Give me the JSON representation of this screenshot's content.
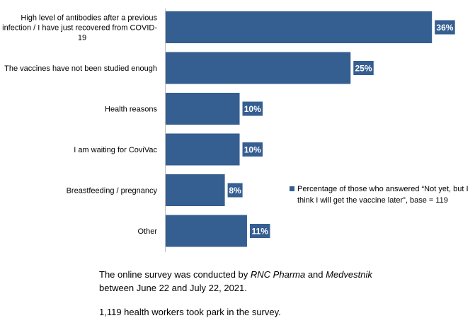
{
  "chart_data": {
    "type": "bar",
    "orientation": "horizontal",
    "categories": [
      [
        "High level of antibodies after a previous",
        "infection / I have just recovered from COVID-",
        "19"
      ],
      [
        "The vaccines have not been studied enough"
      ],
      [
        "Health reasons"
      ],
      [
        "I am waiting for CoviVac"
      ],
      [
        "Breastfeeding / pregnancy"
      ],
      [
        "Other"
      ]
    ],
    "series": [
      {
        "name": "Percentage of those who answered “Not yet, but I think I will get the vaccine later”, base = 119",
        "values": [
          36,
          25,
          10,
          10,
          8,
          11
        ],
        "data_labels": [
          "36%",
          "25%",
          "10%",
          "10%",
          "8%",
          "11%"
        ],
        "color": "#355E91"
      }
    ],
    "xlim": [
      0,
      40
    ],
    "grid": false,
    "legend_position": "right"
  },
  "legend": {
    "lines": [
      "Percentage of those who answered “Not yet, but I",
      "think I will get the vaccine later”, base = 119"
    ]
  },
  "note": {
    "line1_a": "The online survey was conducted by ",
    "line1_b": "RNC Pharma",
    "line1_c": " and ",
    "line1_d": "Medvestnik",
    "line2": "between June 22 and July 22, 2021.",
    "line3": "1,119 health workers took park in the survey."
  }
}
